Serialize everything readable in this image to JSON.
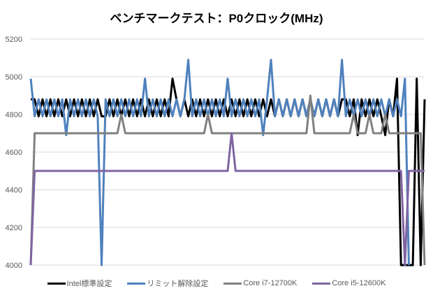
{
  "chart_data": {
    "type": "line",
    "title": "ベンチマークテスト：P0クロック(MHz)",
    "xlabel": "",
    "ylabel": "",
    "ylim": [
      4000,
      5200
    ],
    "yticks": [
      4000,
      4200,
      4400,
      4600,
      4800,
      5000,
      5200
    ],
    "grid": true,
    "legend_position": "bottom",
    "x_count": 101,
    "series": [
      {
        "name": "Intel標準設定",
        "color": "#000000",
        "values": [
          4880,
          4880,
          4790,
          4880,
          4790,
          4880,
          4790,
          4880,
          4790,
          4880,
          4790,
          4880,
          4790,
          4880,
          4790,
          4880,
          4790,
          4880,
          4790,
          4790,
          4880,
          4790,
          4880,
          4790,
          4880,
          4790,
          4880,
          4790,
          4880,
          4790,
          4880,
          4790,
          4880,
          4790,
          4880,
          4790,
          4990,
          4880,
          4790,
          4880,
          4790,
          4880,
          4790,
          4880,
          4790,
          4880,
          4790,
          4880,
          4790,
          4880,
          4790,
          4880,
          4790,
          4880,
          4790,
          4880,
          4790,
          4880,
          4790,
          4880,
          4790,
          4880,
          4790,
          4880,
          4790,
          4880,
          4790,
          4880,
          4790,
          4880,
          4790,
          4880,
          4790,
          4880,
          4790,
          4880,
          4790,
          4880,
          4790,
          4880,
          4880,
          4790,
          4880,
          4690,
          4880,
          4790,
          4880,
          4790,
          4880,
          4790,
          4690,
          4880,
          4790,
          4990,
          4000,
          4000,
          4000,
          4000,
          4990,
          4000,
          4880
        ]
      },
      {
        "name": "リミット解除設定",
        "color": "#4f81bd",
        "values": [
          4990,
          4790,
          4880,
          4790,
          4880,
          4790,
          4880,
          4790,
          4880,
          4690,
          4880,
          4790,
          4880,
          4790,
          4880,
          4790,
          4880,
          4790,
          4000,
          4880,
          4790,
          4880,
          4790,
          4880,
          4790,
          4880,
          4790,
          4880,
          4790,
          4990,
          4790,
          4880,
          4790,
          4880,
          4790,
          4880,
          4790,
          4880,
          4790,
          4880,
          5090,
          4790,
          4880,
          4790,
          4880,
          4790,
          4880,
          4790,
          4880,
          4790,
          4990,
          4790,
          4880,
          4790,
          4880,
          4790,
          4880,
          4790,
          4880,
          4690,
          4880,
          5090,
          4790,
          4880,
          4790,
          4880,
          4790,
          4880,
          4790,
          4880,
          4790,
          4880,
          4790,
          4880,
          4790,
          4880,
          4790,
          4880,
          4790,
          5090,
          4790,
          4880,
          4790,
          4880,
          4790,
          4880,
          4790,
          4880,
          4790,
          4880,
          4790,
          4880,
          4790,
          4880,
          4790,
          4990,
          4000,
          null,
          null,
          null,
          null
        ]
      },
      {
        "name": "Core i7-12700K",
        "color": "#808080",
        "values": [
          4000,
          4700,
          4700,
          4700,
          4700,
          4700,
          4700,
          4700,
          4700,
          4700,
          4700,
          4700,
          4700,
          4700,
          4700,
          4700,
          4700,
          4700,
          4700,
          4700,
          4700,
          4700,
          4700,
          4800,
          4700,
          4700,
          4700,
          4700,
          4700,
          4700,
          4700,
          4700,
          4700,
          4700,
          4700,
          4700,
          4700,
          4700,
          4700,
          4700,
          4700,
          4700,
          4700,
          4700,
          4700,
          4800,
          4700,
          4700,
          4700,
          4700,
          4700,
          4700,
          4700,
          4700,
          4700,
          4700,
          4700,
          4700,
          4700,
          4700,
          4700,
          4700,
          4700,
          4700,
          4700,
          4700,
          4700,
          4700,
          4700,
          4700,
          4700,
          4900,
          4700,
          4700,
          4700,
          4700,
          4700,
          4700,
          4700,
          4700,
          4700,
          4700,
          4800,
          4700,
          4700,
          4700,
          4800,
          4700,
          4700,
          4700,
          4800,
          4700,
          4700,
          4700,
          4700,
          4700,
          4700,
          4700,
          4700,
          4700,
          4000
        ]
      },
      {
        "name": "Core i5-12600K",
        "color": "#8064a2",
        "values": [
          4000,
          4500,
          4500,
          4500,
          4500,
          4500,
          4500,
          4500,
          4500,
          4500,
          4500,
          4500,
          4500,
          4500,
          4500,
          4500,
          4500,
          4500,
          4500,
          4500,
          4500,
          4500,
          4500,
          4500,
          4500,
          4500,
          4500,
          4500,
          4500,
          4500,
          4500,
          4500,
          4500,
          4500,
          4500,
          4500,
          4500,
          4500,
          4500,
          4500,
          4500,
          4500,
          4500,
          4500,
          4500,
          4500,
          4500,
          4500,
          4500,
          4500,
          4500,
          4700,
          4500,
          4500,
          4500,
          4500,
          4500,
          4500,
          4500,
          4500,
          4500,
          4500,
          4500,
          4500,
          4500,
          4500,
          4500,
          4500,
          4500,
          4500,
          4500,
          4500,
          4500,
          4500,
          4500,
          4500,
          4500,
          4500,
          4500,
          4500,
          4500,
          4500,
          4500,
          4500,
          4500,
          4500,
          4500,
          4500,
          4500,
          4500,
          4500,
          4500,
          4500,
          4500,
          4500,
          4000,
          4500,
          4500,
          4500,
          4500,
          4500
        ]
      }
    ]
  }
}
